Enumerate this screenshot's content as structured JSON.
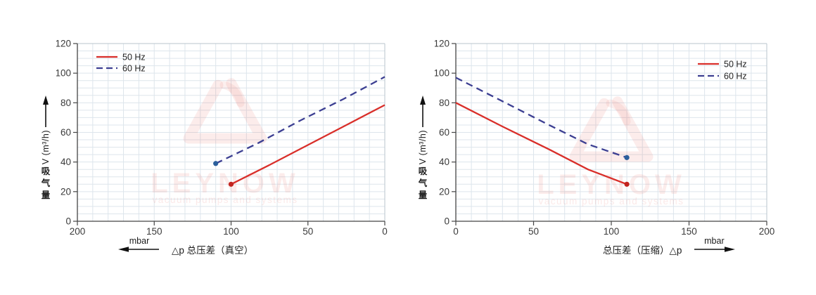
{
  "theme": {
    "background": "#ffffff",
    "grid_color": "#dde5ec",
    "plot_border_color": "#b9c4ce",
    "axis_color": "#454545",
    "text_color": "#3a3a3a",
    "watermark_pink": "#e4605a"
  },
  "watermark": {
    "brand": "LEYNOW",
    "tagline": "vacuum pumps and systems"
  },
  "chart_data": [
    {
      "type": "line",
      "name": "vacuum-performance-curve",
      "x": {
        "caption": "△p  总压差（真空）",
        "unit": "mbar",
        "unit_arrow": "left",
        "left_value": 200,
        "right_value": 0,
        "ticks": [
          200,
          150,
          100,
          50,
          0
        ],
        "minor_step": 10
      },
      "y": {
        "caption_cjk": [
          "吸",
          "气",
          "量"
        ],
        "caption_latin": "V (m³/h)",
        "min": 0,
        "max": 120,
        "ticks": [
          0,
          20,
          40,
          60,
          80,
          100,
          120
        ],
        "minor_step": 5
      },
      "legend_position": "top-left",
      "series": [
        {
          "name": "50 Hz",
          "color": "#d92f2a",
          "marker_color": "#c2241f",
          "line": "solid",
          "marker_point": [
            100,
            25
          ],
          "points": [
            [
              100,
              25
            ],
            [
              75,
              38
            ],
            [
              50,
              51.5
            ],
            [
              25,
              65
            ],
            [
              0,
              78.5
            ]
          ]
        },
        {
          "name": "60 Hz",
          "color": "#3c3f92",
          "marker_color": "#2b5f9c",
          "line": "dashed",
          "marker_point": [
            110,
            39
          ],
          "points": [
            [
              110,
              39
            ],
            [
              82,
              53
            ],
            [
              55,
              68
            ],
            [
              27,
              82.5
            ],
            [
              0,
              97.5
            ]
          ]
        }
      ]
    },
    {
      "type": "line",
      "name": "compression-performance-curve",
      "x": {
        "caption": "总压差（压缩）△p",
        "unit": "mbar",
        "unit_arrow": "right",
        "left_value": 0,
        "right_value": 200,
        "ticks": [
          0,
          50,
          100,
          150,
          200
        ],
        "minor_step": 10
      },
      "y": {
        "caption_cjk": [
          "吸",
          "气",
          "量"
        ],
        "caption_latin": "V (m³/h)",
        "min": 0,
        "max": 120,
        "ticks": [
          0,
          20,
          40,
          60,
          80,
          100,
          120
        ],
        "minor_step": 5
      },
      "legend_position": "top-right",
      "series": [
        {
          "name": "50 Hz",
          "color": "#d92f2a",
          "marker_color": "#c2241f",
          "line": "solid",
          "marker_point": [
            110,
            25
          ],
          "points": [
            [
              0,
              80
            ],
            [
              30,
              64
            ],
            [
              60,
              48.5
            ],
            [
              85,
              35
            ],
            [
              110,
              25
            ]
          ]
        },
        {
          "name": "60 Hz",
          "color": "#3c3f92",
          "marker_color": "#2b5f9c",
          "line": "dashed",
          "marker_point": [
            110,
            43
          ],
          "points": [
            [
              0,
              97
            ],
            [
              30,
              81
            ],
            [
              60,
              65
            ],
            [
              85,
              52
            ],
            [
              110,
              43
            ]
          ]
        }
      ]
    }
  ]
}
